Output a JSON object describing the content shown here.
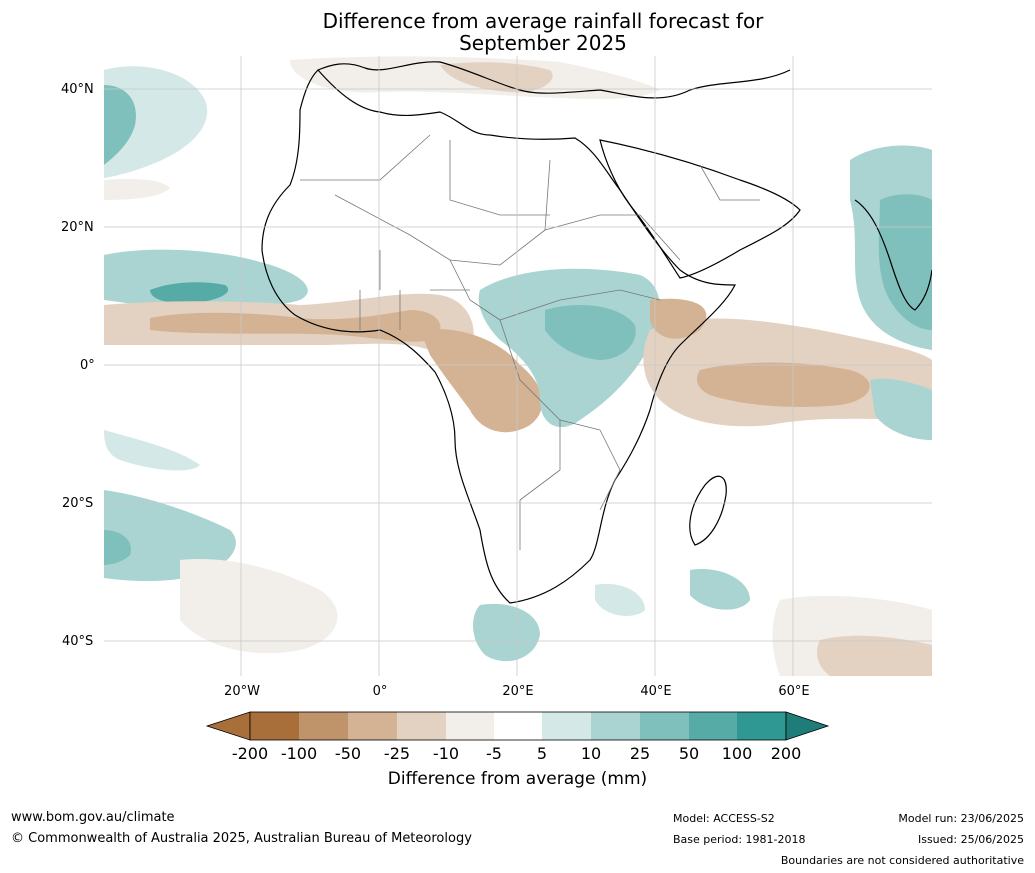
{
  "title_line1": "Difference from average rainfall forecast for",
  "title_line2": "September 2025",
  "map": {
    "lat_labels": [
      "40°N",
      "20°N",
      "0°",
      "20°S",
      "40°S"
    ],
    "lon_labels": [
      "20°W",
      "0°",
      "20°E",
      "40°E",
      "60°E"
    ],
    "colors": {
      "brown_200": "#a86f3a",
      "brown_100": "#c0946a",
      "brown_50": "#d3b393",
      "brown_25": "#e3d2c1",
      "brown_10": "#f2eee9",
      "white": "#ffffff",
      "teal_5": "#d3e8e7",
      "teal_10": "#a9d4d1",
      "teal_25": "#80c0bc",
      "teal_50": "#56aba6",
      "teal_100": "#2f9892",
      "teal_200": "#1e7d78"
    }
  },
  "colorbar": {
    "labels": [
      "-200",
      "-100",
      "-50",
      "-25",
      "-10",
      "-5",
      "5",
      "10",
      "25",
      "50",
      "100",
      "200"
    ],
    "colors": [
      "#a86f3a",
      "#a86f3a",
      "#c0946a",
      "#d3b393",
      "#e3d2c1",
      "#f2eee9",
      "#ffffff",
      "#d3e8e7",
      "#a9d4d1",
      "#80c0bc",
      "#56aba6",
      "#2f9892",
      "#1e7d78"
    ],
    "title": "Difference from average (mm)"
  },
  "footer": {
    "website": "www.bom.gov.au/climate",
    "copyright": "© Commonwealth of Australia 2025, Australian Bureau of Meteorology",
    "model": "Model: ACCESS-S2",
    "base_period": "Base period: 1981-2018",
    "model_run": "Model run: 23/06/2025",
    "issued": "Issued: 25/06/2025",
    "disclaimer": "Boundaries are not considered authoritative"
  }
}
